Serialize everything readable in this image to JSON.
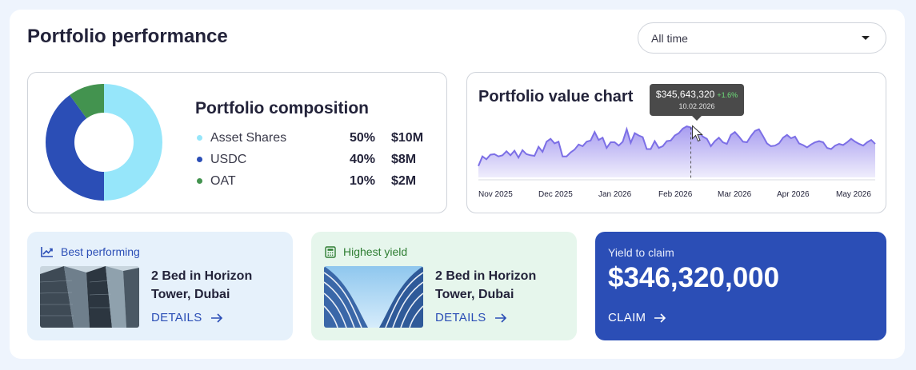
{
  "header": {
    "title": "Portfolio performance"
  },
  "filter": {
    "selected": "All time"
  },
  "composition": {
    "title": "Portfolio composition",
    "items": [
      {
        "name": "Asset Shares",
        "percent": "50%",
        "amount": "$10M",
        "value": 50,
        "color": "#96e6fa"
      },
      {
        "name": "USDC",
        "percent": "40%",
        "amount": "$8M",
        "value": 40,
        "color": "#2b4eb6"
      },
      {
        "name": "OAT",
        "percent": "10%",
        "amount": "$2M",
        "value": 10,
        "color": "#43934f"
      }
    ]
  },
  "value_chart": {
    "title": "Portfolio value chart",
    "tooltip": {
      "value": "$345,643,320",
      "change": "+1.6%",
      "date": "10.02.2026"
    },
    "x_labels": [
      "Nov 2025",
      "Dec 2025",
      "Jan 2026",
      "Feb 2026",
      "Mar 2026",
      "Apr 2026",
      "May 2026"
    ]
  },
  "chart_data": {
    "type": "area",
    "title": "Portfolio value chart",
    "x_tick_labels": [
      "Nov 2025",
      "Dec 2025",
      "Jan 2026",
      "Feb 2026",
      "Mar 2026",
      "Apr 2026",
      "May 2026"
    ],
    "values": [
      20,
      37,
      32,
      40,
      41,
      37,
      39,
      46,
      39,
      47,
      35,
      48,
      41,
      39,
      38,
      54,
      45,
      63,
      68,
      60,
      63,
      37,
      37,
      44,
      49,
      58,
      55,
      63,
      65,
      80,
      66,
      70,
      52,
      62,
      62,
      56,
      63,
      85,
      61,
      78,
      74,
      71,
      50,
      50,
      64,
      52,
      55,
      64,
      65,
      74,
      78,
      86,
      90,
      88,
      80,
      80,
      72,
      68,
      55,
      64,
      70,
      62,
      59,
      75,
      80,
      72,
      63,
      62,
      73,
      82,
      85,
      73,
      60,
      55,
      56,
      60,
      70,
      75,
      69,
      72,
      60,
      57,
      53,
      58,
      62,
      64,
      62,
      52,
      50,
      56,
      59,
      57,
      62,
      68,
      63,
      59,
      56,
      62,
      66,
      59
    ],
    "highlight": {
      "label": "10.02.2026",
      "value": "$345,643,320",
      "change": "+1.6%"
    },
    "color": "#7c6fe6",
    "grid": false,
    "legend": "none"
  },
  "best": {
    "heading": "Best performing",
    "property": "2 Bed in Horizon Tower, Dubai",
    "link": "DETAILS"
  },
  "highest": {
    "heading": "Highest yield",
    "property": "2 Bed in Horizon Tower, Dubai",
    "link": "DETAILS"
  },
  "claim": {
    "label": "Yield to claim",
    "value": "$346,320,000",
    "button": "CLAIM"
  },
  "icons": {
    "trend": "trending-up-icon",
    "calculator": "calculator-icon",
    "arrow": "arrow-right-icon",
    "caret": "chevron-down-icon"
  }
}
